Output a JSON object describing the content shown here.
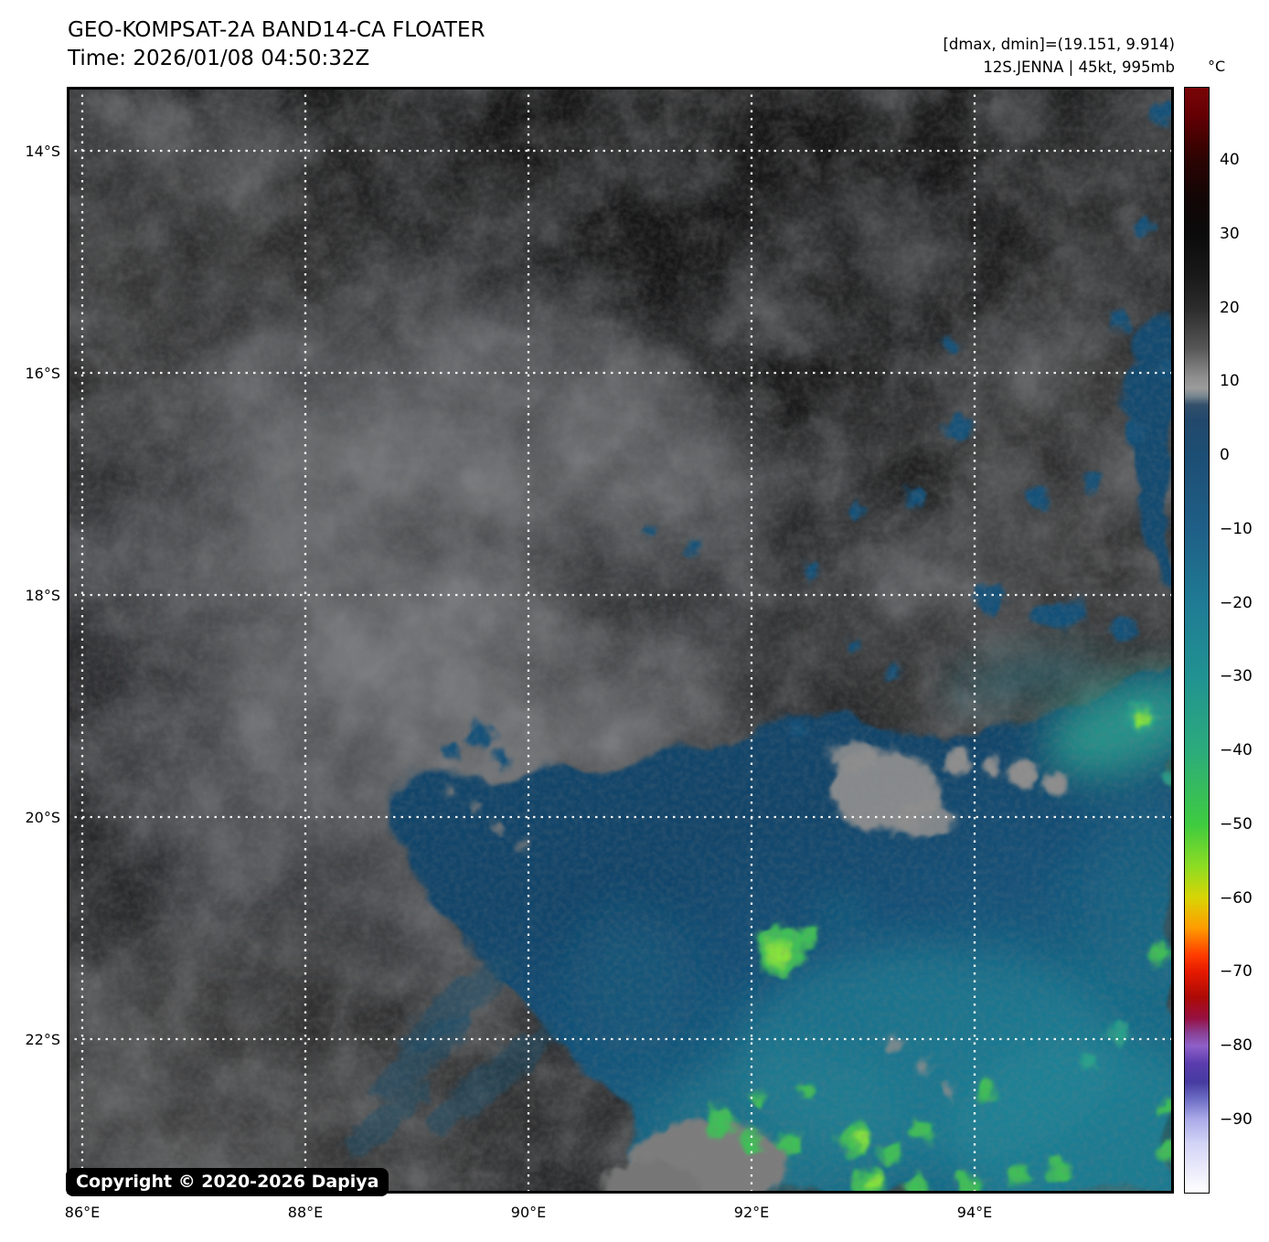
{
  "header": {
    "title": "GEO-KOMPSAT-2A BAND14-CA FLOATER",
    "time": "Time: 2026/01/08 04:50:32Z",
    "dmax_dmin": "[dmax, dmin]=(19.151, 9.914)",
    "storm": "12S.JENNA | 45kt, 995mb"
  },
  "axes": {
    "lat": [
      "14°S",
      "16°S",
      "18°S",
      "20°S",
      "22°S"
    ],
    "lon": [
      "86°E",
      "88°E",
      "90°E",
      "92°E",
      "94°E"
    ]
  },
  "colorbar": {
    "unit": "°C",
    "top_value": 50,
    "bottom_value": -100,
    "tick_values": [
      40,
      30,
      20,
      10,
      0,
      -10,
      -20,
      -30,
      -40,
      -50,
      -60,
      -70,
      -80,
      -90
    ],
    "tick_labels": [
      "40",
      "30",
      "20",
      "10",
      "0",
      "−10",
      "−20",
      "−30",
      "−40",
      "−50",
      "−60",
      "−70",
      "−80",
      "−90"
    ],
    "stops": [
      [
        0,
        "#7a0507"
      ],
      [
        2.5,
        "#640004"
      ],
      [
        5,
        "#400202"
      ],
      [
        6.7,
        "#2a0403"
      ],
      [
        10,
        "#120606"
      ],
      [
        13.3,
        "#0b0b0b"
      ],
      [
        17,
        "#191919"
      ],
      [
        20,
        "#2c2c2c"
      ],
      [
        23.5,
        "#555555"
      ],
      [
        26.2,
        "#8e8e8e"
      ],
      [
        27.2,
        "#9b9b9b"
      ],
      [
        27.9,
        "#77868f"
      ],
      [
        28.7,
        "#33506b"
      ],
      [
        30,
        "#22486b"
      ],
      [
        33.3,
        "#1d4e74"
      ],
      [
        40,
        "#1f5f87"
      ],
      [
        46.7,
        "#1f7b94"
      ],
      [
        53.3,
        "#219292"
      ],
      [
        60,
        "#2cab7c"
      ],
      [
        66.7,
        "#3fcb40"
      ],
      [
        70.5,
        "#8edc22"
      ],
      [
        73.3,
        "#d8d505"
      ],
      [
        76,
        "#ff9d00"
      ],
      [
        78.5,
        "#ff3c00"
      ],
      [
        80,
        "#e51a00"
      ],
      [
        82.3,
        "#ad0a06"
      ],
      [
        84.2,
        "#971040"
      ],
      [
        85.5,
        "#8a3f92"
      ],
      [
        86.7,
        "#8e60c8"
      ],
      [
        88.3,
        "#5b3cae"
      ],
      [
        90,
        "#473ba0"
      ],
      [
        91.5,
        "#6c6cc4"
      ],
      [
        93.3,
        "#a9a9e8"
      ],
      [
        95.5,
        "#d2d3f6"
      ],
      [
        100,
        "#ffffff"
      ]
    ]
  },
  "map": {
    "copyright": "Copyright © 2020-2026 Dapiya",
    "palette": {
      "cloud_dark": "#232425",
      "cloud_light": "#6a6d6f",
      "cold_blue": "#155179",
      "cold_teal": "#1e8296",
      "cold_green": "#3fbf57",
      "cold_bright_green": "#86e33c"
    }
  }
}
